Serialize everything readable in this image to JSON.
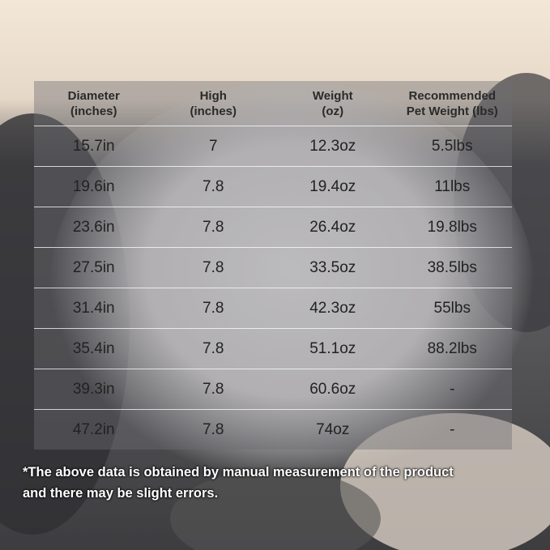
{
  "table": {
    "header": [
      [
        "Diameter",
        "(inches)"
      ],
      [
        "High",
        "(inches)"
      ],
      [
        "Weight",
        "(oz)"
      ],
      [
        "Recommended",
        "Pet Weight (lbs)"
      ]
    ],
    "rows": [
      [
        "15.7in",
        "7",
        "12.3oz",
        "5.5lbs"
      ],
      [
        "19.6in",
        "7.8",
        "19.4oz",
        "11lbs"
      ],
      [
        "23.6in",
        "7.8",
        "26.4oz",
        "19.8lbs"
      ],
      [
        "27.5in",
        "7.8",
        "33.5oz",
        "38.5lbs"
      ],
      [
        "31.4in",
        "7.8",
        "42.3oz",
        "55lbs"
      ],
      [
        "35.4in",
        "7.8",
        "51.1oz",
        "88.2lbs"
      ],
      [
        "39.3in",
        "7.8",
        "60.6oz",
        "-"
      ],
      [
        "47.2in",
        "7.8",
        "74oz",
        "-"
      ]
    ]
  },
  "footnote": [
    "*The above data is obtained by manual measurement of the product",
    "and there may be slight errors."
  ]
}
